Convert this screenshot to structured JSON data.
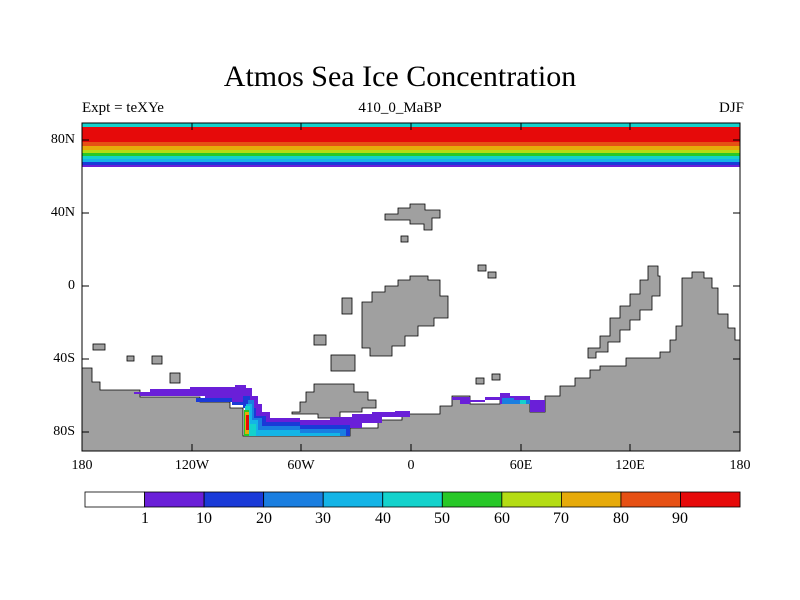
{
  "title": "Atmos Sea Ice Concentration",
  "subtitle_left": "Expt = teXYe",
  "subtitle_center": "410_0_MaBP",
  "subtitle_right": "DJF",
  "y_axis_labels": [
    "80N",
    "40N",
    "0",
    "40S",
    "80S"
  ],
  "x_axis_labels": [
    "180",
    "120W",
    "60W",
    "0",
    "60E",
    "120E",
    "180"
  ],
  "colorbar": {
    "labels": [
      "1",
      "10",
      "20",
      "30",
      "40",
      "50",
      "60",
      "70",
      "80",
      "90"
    ],
    "colors": [
      "#ffffff",
      "#6a1fd8",
      "#1a3ad8",
      "#1a7ee0",
      "#14b4e6",
      "#14d2cc",
      "#28c828",
      "#b4dc14",
      "#e6aa0a",
      "#e65014",
      "#e60a0a"
    ]
  },
  "land_color": "#a0a0a0"
}
